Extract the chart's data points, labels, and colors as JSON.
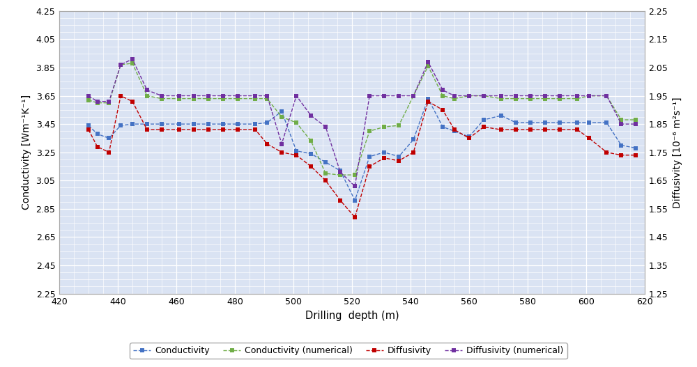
{
  "color_cond": "#4472C4",
  "color_cond_num": "#70AD47",
  "color_diff": "#C00000",
  "color_diff_num": "#7030A0",
  "bg_color": "#DAE3F3",
  "ylim_left": [
    2.25,
    4.25
  ],
  "ylim_right": [
    1.25,
    2.25
  ],
  "xlim": [
    420,
    620
  ],
  "xlabel": "Drilling  depth (m)",
  "ylabel_left": "Conductivity [Wm⁻¹K⁻¹]",
  "ylabel_right": "Diffusivity [10⁻⁶ m²s⁻¹]",
  "xticks": [
    420,
    440,
    460,
    480,
    500,
    520,
    540,
    560,
    580,
    600,
    620
  ],
  "yticks_left": [
    2.25,
    2.45,
    2.65,
    2.85,
    3.05,
    3.25,
    3.45,
    3.65,
    3.85,
    4.05,
    4.25
  ],
  "yticks_right": [
    1.25,
    1.35,
    1.45,
    1.55,
    1.65,
    1.75,
    1.85,
    1.95,
    2.05,
    2.15,
    2.25
  ],
  "depth_cond": [
    430,
    433,
    437,
    441,
    445,
    450,
    455,
    461,
    466,
    471,
    476,
    481,
    487,
    491,
    496,
    501,
    506,
    511,
    516,
    521,
    526,
    531,
    536,
    541,
    546,
    551,
    555,
    560,
    565,
    571,
    576,
    581,
    586,
    591,
    597,
    601,
    607,
    612,
    617
  ],
  "cond_vals": [
    3.44,
    3.38,
    3.35,
    3.44,
    3.45,
    3.45,
    3.45,
    3.45,
    3.45,
    3.45,
    3.45,
    3.45,
    3.45,
    3.46,
    3.54,
    3.26,
    3.24,
    3.18,
    3.12,
    2.91,
    3.22,
    3.25,
    3.22,
    3.34,
    3.63,
    3.43,
    3.4,
    3.36,
    3.48,
    3.51,
    3.46,
    3.46,
    3.46,
    3.46,
    3.46,
    3.46,
    3.46,
    3.3,
    3.28
  ],
  "depth_cond_num": [
    430,
    433,
    437,
    441,
    445,
    450,
    455,
    461,
    466,
    471,
    476,
    481,
    487,
    491,
    496,
    501,
    506,
    511,
    516,
    521,
    526,
    531,
    536,
    541,
    546,
    551,
    555,
    560,
    565,
    571,
    576,
    581,
    586,
    591,
    597,
    601,
    607,
    612,
    617
  ],
  "cond_num_vals": [
    3.62,
    3.6,
    3.6,
    3.87,
    3.88,
    3.65,
    3.63,
    3.63,
    3.63,
    3.63,
    3.63,
    3.63,
    3.63,
    3.63,
    3.5,
    3.46,
    3.33,
    3.1,
    3.09,
    3.09,
    3.4,
    3.43,
    3.44,
    3.65,
    3.86,
    3.65,
    3.63,
    3.65,
    3.65,
    3.63,
    3.63,
    3.63,
    3.63,
    3.63,
    3.63,
    3.65,
    3.65,
    3.48,
    3.48
  ],
  "depth_diff": [
    430,
    433,
    437,
    441,
    445,
    450,
    455,
    461,
    466,
    471,
    476,
    481,
    487,
    491,
    496,
    501,
    506,
    511,
    516,
    521,
    526,
    531,
    536,
    541,
    546,
    551,
    555,
    560,
    565,
    571,
    576,
    581,
    586,
    591,
    597,
    601,
    607,
    612,
    617
  ],
  "diff_vals": [
    1.83,
    1.77,
    1.75,
    1.95,
    1.93,
    1.83,
    1.83,
    1.83,
    1.83,
    1.83,
    1.83,
    1.83,
    1.83,
    1.78,
    1.75,
    1.74,
    1.7,
    1.65,
    1.58,
    1.52,
    1.7,
    1.73,
    1.72,
    1.75,
    1.93,
    1.9,
    1.83,
    1.8,
    1.84,
    1.83,
    1.83,
    1.83,
    1.83,
    1.83,
    1.83,
    1.8,
    1.75,
    1.74,
    1.74
  ],
  "depth_diff_num": [
    430,
    433,
    437,
    441,
    445,
    450,
    455,
    461,
    466,
    471,
    476,
    481,
    487,
    491,
    496,
    501,
    506,
    511,
    516,
    521,
    526,
    531,
    536,
    541,
    546,
    551,
    555,
    560,
    565,
    571,
    576,
    581,
    586,
    591,
    597,
    601,
    607,
    612,
    617
  ],
  "diff_num_vals": [
    1.95,
    1.93,
    1.93,
    2.06,
    2.08,
    1.97,
    1.95,
    1.95,
    1.95,
    1.95,
    1.95,
    1.95,
    1.95,
    1.95,
    1.78,
    1.95,
    1.88,
    1.84,
    1.68,
    1.63,
    1.95,
    1.95,
    1.95,
    1.95,
    2.07,
    1.97,
    1.95,
    1.95,
    1.95,
    1.95,
    1.95,
    1.95,
    1.95,
    1.95,
    1.95,
    1.95,
    1.95,
    1.85,
    1.85
  ]
}
